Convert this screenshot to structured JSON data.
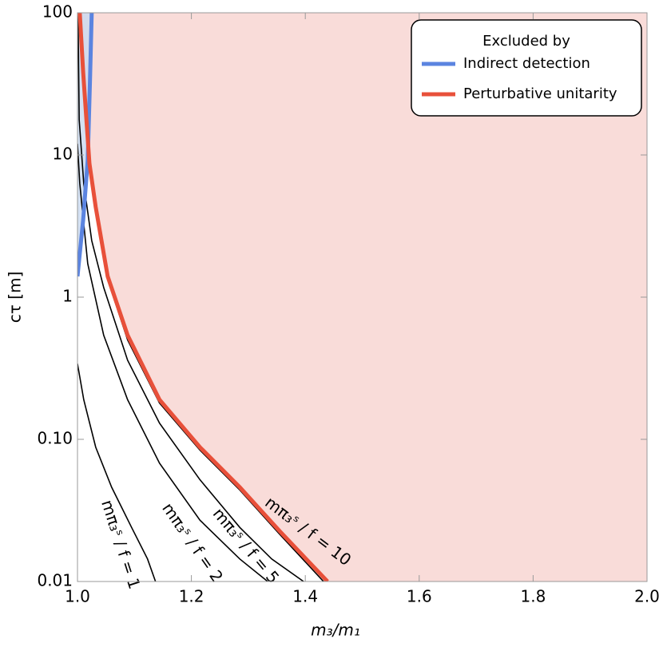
{
  "chart_data": {
    "type": "line",
    "xlabel": "m₃/m₁",
    "ylabel": "cτ [m]",
    "xlim": [
      1.0,
      2.0
    ],
    "ylim": [
      0.01,
      100
    ],
    "log_y": true,
    "xticks": [
      {
        "value": 1.0,
        "label": "1.0"
      },
      1.2,
      1.4,
      1.6,
      1.8,
      {
        "value": 2.0,
        "label": "2.0"
      }
    ],
    "yticks": [
      0.01,
      {
        "value": 0.1,
        "label": "0.10"
      },
      1,
      10,
      100
    ],
    "legend_title": "Excluded by",
    "legend_position": "upper right",
    "series": [
      {
        "name": "Indirect detection",
        "color": "#5b84e0",
        "fill": "#c9daf0",
        "x": [
          1.0,
          1.01,
          1.018,
          1.022,
          1.025
        ],
        "values": [
          1.4,
          3.5,
          9.2,
          34,
          100
        ]
      },
      {
        "name": "Perturbative unitarity",
        "color": "#e8503a",
        "fill": "#f9dcd9",
        "x": [
          1.004,
          1.01,
          1.021,
          1.032,
          1.053,
          1.088,
          1.144,
          1.215,
          1.285,
          1.355,
          1.439
        ],
        "values": [
          100,
          38,
          8.7,
          4.3,
          1.4,
          0.54,
          0.19,
          0.088,
          0.046,
          0.0226,
          0.01
        ]
      }
    ],
    "contours": [
      {
        "label": "mπ₃ˢ / f = 1",
        "x": [
          1.0,
          1.011,
          1.032,
          1.06,
          1.095,
          1.123,
          1.137
        ],
        "values": [
          0.34,
          0.19,
          0.088,
          0.046,
          0.024,
          0.0144,
          0.01
        ]
      },
      {
        "label": "mπ₃ˢ / f = 2",
        "x": [
          1.0,
          1.004,
          1.018,
          1.046,
          1.088,
          1.144,
          1.215,
          1.285,
          1.334
        ],
        "values": [
          12,
          6.3,
          1.72,
          0.54,
          0.19,
          0.068,
          0.027,
          0.0144,
          0.01
        ]
      },
      {
        "label": "mπ₃ˢ / f = 5",
        "x": [
          1.001,
          1.003,
          1.011,
          1.025,
          1.046,
          1.088,
          1.144,
          1.215,
          1.285,
          1.341,
          1.397
        ],
        "values": [
          100,
          17.7,
          6.3,
          2.5,
          1.17,
          0.36,
          0.13,
          0.052,
          0.024,
          0.0144,
          0.01
        ]
      },
      {
        "label": "mπ₃ˢ / f = 10",
        "x": [
          1.003,
          1.01,
          1.021,
          1.032,
          1.053,
          1.088,
          1.144,
          1.215,
          1.285,
          1.355,
          1.432
        ],
        "values": [
          100,
          37,
          8.4,
          4.1,
          1.33,
          0.5,
          0.18,
          0.084,
          0.044,
          0.0215,
          0.01
        ]
      }
    ]
  }
}
